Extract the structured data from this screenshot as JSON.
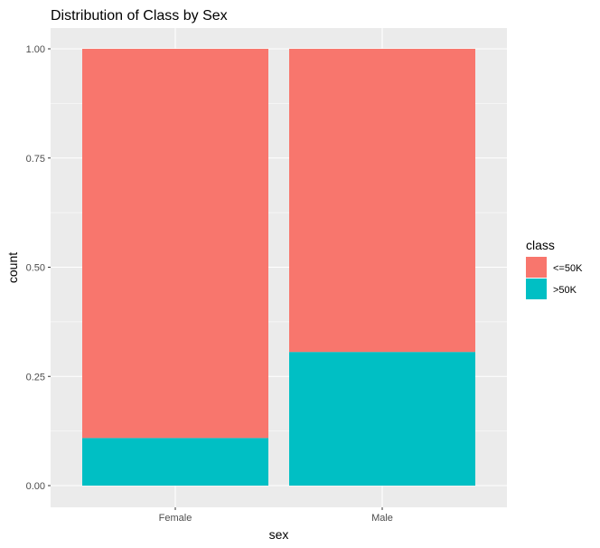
{
  "chart_data": {
    "type": "bar",
    "stacked": true,
    "title": "Distribution of Class by Sex",
    "xlabel": "sex",
    "ylabel": "count",
    "categories": [
      "Female",
      "Male"
    ],
    "series": [
      {
        "name": "<=50K",
        "color": "#F8766D",
        "values": [
          0.891,
          0.694
        ]
      },
      {
        "name": ">50K",
        "color": "#00BFC4",
        "values": [
          0.109,
          0.306
        ]
      }
    ],
    "ylim": [
      0,
      1.0
    ],
    "y_ticks": [
      "0.00",
      "0.25",
      "0.50",
      "0.75",
      "1.00"
    ],
    "y_tick_values": [
      0,
      0.25,
      0.5,
      0.75,
      1.0
    ],
    "grid": true,
    "panel_background": "#EBEBEB",
    "legend": {
      "title": "class",
      "position": "right"
    }
  }
}
